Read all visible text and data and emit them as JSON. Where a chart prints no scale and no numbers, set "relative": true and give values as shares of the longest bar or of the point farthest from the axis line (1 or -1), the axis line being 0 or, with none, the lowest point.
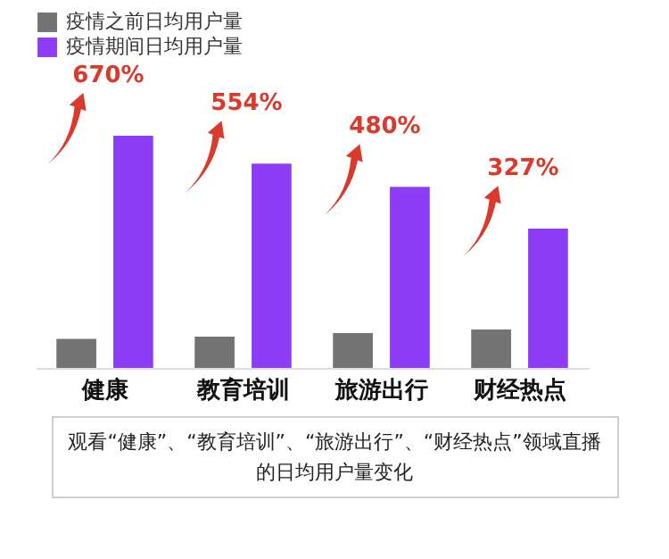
{
  "chart_data": {
    "type": "bar",
    "relative": true,
    "categories": [
      "健康",
      "教育培训",
      "旅游出行",
      "财经热点"
    ],
    "series": [
      {
        "name": "疫情之前日均用户量",
        "color": "#737373",
        "values": [
          0.125,
          0.135,
          0.15,
          0.165
        ]
      },
      {
        "name": "疫情期间日均用户量",
        "color": "#8d3df5",
        "values": [
          1,
          0.88,
          0.78,
          0.6
        ]
      }
    ],
    "annotations": [
      {
        "text": "670%",
        "x": "健康",
        "y": 1
      },
      {
        "text": "554%",
        "x": "教育培训",
        "y": 0.88
      },
      {
        "text": "480%",
        "x": "旅游出行",
        "y": 0.78
      },
      {
        "text": "327%",
        "x": "财经热点",
        "y": 0.6
      },
      "观看“健康”、“教育培训”、“旅游出行”、“财经热点”领域直播的日均用户量变化"
    ],
    "legend": "top left"
  }
}
